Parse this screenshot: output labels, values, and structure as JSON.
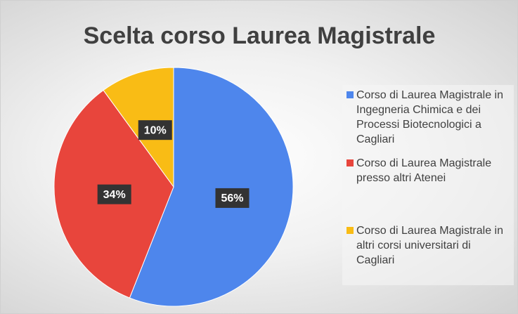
{
  "chart_data": {
    "type": "pie",
    "title": "Scelta corso Laurea Magistrale",
    "categories": [
      "Corso di Laurea Magistrale in Ingegneria Chimica e dei Processi Biotecnologici a Cagliari",
      "Corso di Laurea Magistrale presso altri Atenei",
      "Corso di Laurea Magistrale in altri corsi universitari di Cagliari"
    ],
    "values": [
      56,
      34,
      10
    ],
    "value_labels": [
      "56%",
      "34%",
      "10%"
    ],
    "colors": [
      "#4e86ec",
      "#e8453c",
      "#f9bc15"
    ],
    "legend": "right"
  }
}
